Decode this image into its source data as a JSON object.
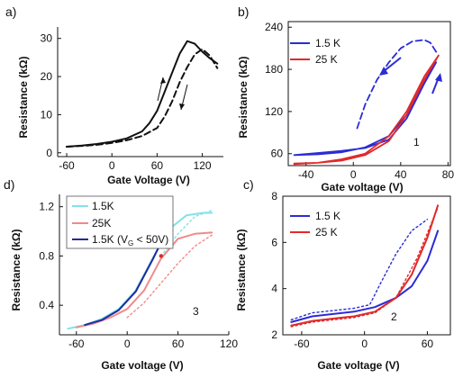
{
  "colors": {
    "blue": "#2b2bd6",
    "red": "#e02a2a",
    "cyan": "#7fe3e8",
    "pink": "#f08a8a",
    "navy": "#1f2a9e",
    "black": "#111111"
  },
  "chart_data": [
    {
      "id": "a",
      "panel_label": "a)",
      "type": "line",
      "xlabel": "Gate Voltage (V)",
      "ylabel": "Resistance (kΩ)",
      "xlim": [
        -72,
        148
      ],
      "ylim": [
        -1,
        33
      ],
      "xticks": [
        -60,
        0,
        60,
        120
      ],
      "yticks": [
        0,
        10,
        20,
        30
      ],
      "grid": false,
      "series": [
        {
          "style": "solid",
          "color": "#111111",
          "x": [
            -60,
            -40,
            -20,
            0,
            20,
            40,
            50,
            60,
            70,
            80,
            90,
            100,
            110,
            120,
            130,
            140
          ],
          "y": [
            1.6,
            1.9,
            2.3,
            2.9,
            3.8,
            5.6,
            7.8,
            11,
            16,
            21,
            26,
            29.3,
            28.6,
            26.5,
            24.8,
            23.4
          ]
        },
        {
          "style": "dashed",
          "color": "#111111",
          "x": [
            -60,
            -40,
            -20,
            0,
            20,
            40,
            60,
            70,
            80,
            90,
            100,
            110,
            120,
            130,
            140
          ],
          "y": [
            1.6,
            1.8,
            2.1,
            2.6,
            3.3,
            4.4,
            6.5,
            9.5,
            13.5,
            18.5,
            22.5,
            25.8,
            27.2,
            25.5,
            22.2
          ]
        }
      ]
    },
    {
      "id": "b",
      "panel_label": "b)",
      "type": "line",
      "xlabel": "Gate voltage (V)",
      "ylabel": "Resistance (kΩ)",
      "xlim": [
        -55,
        82
      ],
      "ylim": [
        43,
        248
      ],
      "xticks": [
        -40,
        0,
        40,
        80
      ],
      "yticks": [
        60,
        120,
        180,
        240
      ],
      "grid": false,
      "annotations": [
        "1"
      ],
      "legend": {
        "position": "top-left",
        "entries": [
          "1.5 K",
          "25 K"
        ]
      },
      "series": [
        {
          "name": "1.5 K",
          "style": "solid",
          "color": "#2b2bd6",
          "x": [
            -50,
            -30,
            -10,
            10,
            30,
            45,
            60,
            70,
            60,
            45,
            30,
            10,
            -10,
            -30,
            -50
          ],
          "y": [
            58,
            61,
            64,
            68,
            80,
            110,
            160,
            190,
            165,
            115,
            85,
            69,
            62,
            59,
            58
          ]
        },
        {
          "name": "25 K",
          "style": "solid",
          "color": "#e02a2a",
          "x": [
            -50,
            -30,
            -10,
            10,
            30,
            45,
            60,
            72,
            60,
            45,
            30,
            10,
            -10,
            -30,
            -50
          ],
          "y": [
            45,
            47,
            50,
            58,
            78,
            115,
            165,
            200,
            170,
            120,
            85,
            60,
            52,
            47,
            46
          ]
        },
        {
          "style": "dashed",
          "color": "#2b2bd6",
          "x": [
            70,
            65,
            60,
            50,
            40,
            30,
            20,
            10,
            3
          ],
          "y": [
            205,
            218,
            222,
            220,
            210,
            190,
            165,
            130,
            95
          ]
        }
      ]
    },
    {
      "id": "d",
      "panel_label": "d)",
      "type": "line",
      "xlabel": "Gate voltage (V)",
      "ylabel": "Resistance (kΩ)",
      "xlim": [
        -80,
        120
      ],
      "ylim": [
        0.16,
        1.3
      ],
      "xticks": [
        -60,
        0,
        60,
        120
      ],
      "yticks": [
        0.4,
        0.8,
        1.2
      ],
      "grid": false,
      "annotations": [
        "3"
      ],
      "legend": {
        "position": "top-left",
        "entries": [
          "1.5K",
          "25K",
          "1.5K (V",
          "G",
          " < 50V)"
        ]
      },
      "series": [
        {
          "name": "1.5K",
          "style": "solid",
          "color": "#7fe3e8",
          "x": [
            -70,
            -50,
            -30,
            -10,
            10,
            30,
            50,
            70,
            90,
            100
          ],
          "y": [
            0.21,
            0.24,
            0.29,
            0.37,
            0.52,
            0.78,
            1.02,
            1.13,
            1.15,
            1.15
          ]
        },
        {
          "name": "25K",
          "style": "solid",
          "color": "#f08a8a",
          "x": [
            -60,
            -40,
            -20,
            0,
            20,
            40,
            60,
            80,
            100
          ],
          "y": [
            0.22,
            0.25,
            0.3,
            0.37,
            0.52,
            0.78,
            0.94,
            0.98,
            0.99
          ]
        },
        {
          "name": "1.5K (VG < 50V)",
          "style": "solid",
          "color": "#1f2a9e",
          "x": [
            -50,
            -30,
            -10,
            10,
            30,
            45
          ],
          "y": [
            0.24,
            0.28,
            0.36,
            0.51,
            0.77,
            0.98
          ]
        },
        {
          "style": "dotted",
          "color": "#7fe3e8",
          "x": [
            40,
            60,
            80,
            100
          ],
          "y": [
            0.8,
            0.98,
            1.12,
            1.17
          ]
        },
        {
          "style": "dotted",
          "color": "#f08a8a",
          "x": [
            0,
            20,
            40,
            60,
            80,
            100
          ],
          "y": [
            0.3,
            0.42,
            0.58,
            0.74,
            0.88,
            0.97
          ]
        }
      ]
    },
    {
      "id": "c",
      "panel_label": "c)",
      "type": "line",
      "xlabel": "Gate voltage (V)",
      "ylabel": "Resistance (kΩ)",
      "xlim": [
        -78,
        82
      ],
      "ylim": [
        2.0,
        8.0
      ],
      "xticks": [
        -60,
        0,
        60
      ],
      "yticks": [
        2,
        4,
        6,
        8
      ],
      "grid": false,
      "annotations": [
        "2"
      ],
      "legend": {
        "position": "top-left",
        "entries": [
          "1.5 K",
          "25 K"
        ]
      },
      "series": [
        {
          "name": "1.5 K",
          "style": "solid",
          "color": "#2b2bd6",
          "x": [
            -70,
            -50,
            -30,
            -10,
            10,
            30,
            45,
            60,
            70
          ],
          "y": [
            2.55,
            2.8,
            2.9,
            3.0,
            3.2,
            3.6,
            4.1,
            5.2,
            6.5
          ]
        },
        {
          "name": "25 K",
          "style": "solid",
          "color": "#e02a2a",
          "x": [
            -70,
            -50,
            -30,
            -10,
            10,
            30,
            45,
            60,
            70
          ],
          "y": [
            2.4,
            2.6,
            2.7,
            2.8,
            3.0,
            3.6,
            4.6,
            6.2,
            7.6
          ]
        },
        {
          "style": "dotted",
          "color": "#2b2bd6",
          "x": [
            -70,
            -50,
            -30,
            -10,
            5,
            15,
            30,
            45,
            60
          ],
          "y": [
            2.65,
            2.95,
            3.05,
            3.15,
            3.3,
            4.2,
            5.5,
            6.5,
            7.0
          ]
        },
        {
          "style": "dotted",
          "color": "#e02a2a",
          "x": [
            -70,
            -50,
            -30,
            -10,
            10,
            30,
            50,
            70
          ],
          "y": [
            2.35,
            2.55,
            2.65,
            2.75,
            2.95,
            3.6,
            5.3,
            7.5
          ]
        }
      ]
    }
  ]
}
